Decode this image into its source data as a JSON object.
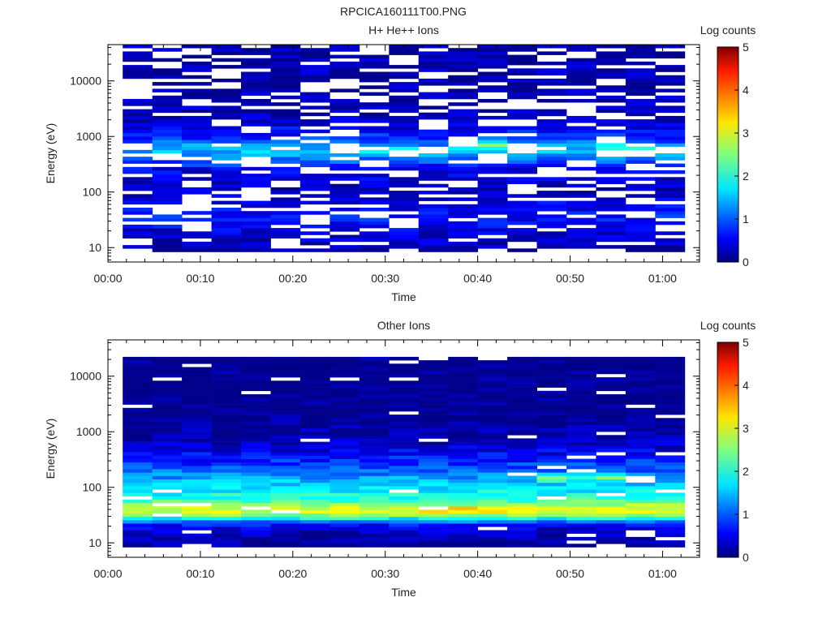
{
  "figure_title": "RPCICA160111T00.PNG",
  "chart_data": [
    {
      "type": "heatmap",
      "title": "H+ He++ Ions",
      "xlabel": "Time",
      "ylabel": "Energy (eV)",
      "y_scale": "log",
      "ylim": [
        5.5,
        45000
      ],
      "xlim_minutes": [
        0,
        64
      ],
      "x_ticks": [
        "00:00",
        "00:10",
        "00:20",
        "00:30",
        "00:40",
        "00:50",
        "01:00"
      ],
      "y_ticks": [
        "10",
        "100",
        "1000",
        "10000"
      ],
      "colorbar": {
        "label": "Log counts",
        "min": 0,
        "max": 5,
        "ticks": [
          "0",
          "1",
          "2",
          "3",
          "4",
          "5"
        ]
      },
      "profile": [
        [
          8,
          0
        ],
        [
          10,
          0.3
        ],
        [
          20,
          0.45
        ],
        [
          35,
          0.75
        ],
        [
          50,
          0.6
        ],
        [
          100,
          0.3
        ],
        [
          250,
          0.5
        ],
        [
          400,
          1.2
        ],
        [
          600,
          1.6
        ],
        [
          900,
          0.9
        ],
        [
          2000,
          0.3
        ],
        [
          10000,
          0.22
        ],
        [
          40000,
          0.2
        ]
      ],
      "peaks": [
        {
          "from": "00:28",
          "to": "00:35",
          "energy": 550,
          "level": 2.1
        },
        {
          "from": "00:39",
          "to": "00:42",
          "energy": 700,
          "level": 2.3
        },
        {
          "from": "00:54",
          "to": "00:57",
          "energy": 600,
          "level": 2.2
        }
      ],
      "gap_density": 0.3,
      "grid": false
    },
    {
      "type": "heatmap",
      "title": "Other Ions",
      "xlabel": "Time",
      "ylabel": "Energy (eV)",
      "y_scale": "log",
      "ylim": [
        5.5,
        45000
      ],
      "xlim_minutes": [
        0,
        64
      ],
      "x_ticks": [
        "00:00",
        "00:10",
        "00:20",
        "00:30",
        "00:40",
        "00:50",
        "01:00"
      ],
      "y_ticks": [
        "10",
        "100",
        "1000",
        "10000"
      ],
      "colorbar": {
        "label": "Log counts",
        "min": 0,
        "max": 5,
        "ticks": [
          "0",
          "1",
          "2",
          "3",
          "4",
          "5"
        ]
      },
      "profile": [
        [
          8,
          0
        ],
        [
          12,
          0.2
        ],
        [
          20,
          0.5
        ],
        [
          25,
          1.3
        ],
        [
          30,
          2.4
        ],
        [
          40,
          3.0
        ],
        [
          50,
          2.6
        ],
        [
          60,
          2.1
        ],
        [
          80,
          1.9
        ],
        [
          120,
          1.6
        ],
        [
          200,
          1.1
        ],
        [
          400,
          0.6
        ],
        [
          800,
          0.2
        ],
        [
          2000,
          0.05
        ],
        [
          40000,
          0.0
        ]
      ],
      "peaks": [
        {
          "from": "00:34",
          "to": "00:46",
          "energy": 40,
          "level": 3.4
        },
        {
          "from": "00:47",
          "to": "00:54",
          "energy": 150,
          "level": 2.3
        }
      ],
      "gap_density": 0.05,
      "grid": false
    }
  ]
}
